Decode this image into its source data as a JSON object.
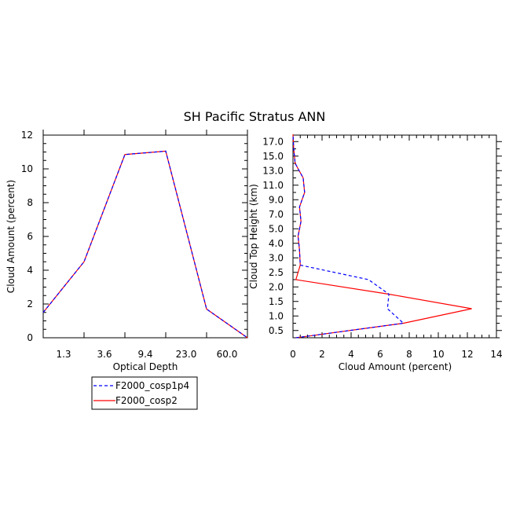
{
  "figure": {
    "title": "SH Pacific Stratus ANN"
  },
  "legend": {
    "entries": [
      {
        "label": "F2000_cosp1p4",
        "color": "#0000ff",
        "dash": "dashed"
      },
      {
        "label": "F2000_cosp2",
        "color": "#ff0000",
        "dash": "solid"
      }
    ]
  },
  "chart_data": [
    {
      "type": "line",
      "title": "",
      "xlabel": "Optical Depth",
      "ylabel": "Cloud Amount (percent)",
      "x_tick_labels": [
        "1.3",
        "3.6",
        "9.4",
        "23.0",
        "60.0"
      ],
      "y_ticks": [
        0,
        2,
        4,
        6,
        8,
        10,
        12
      ],
      "ylim": [
        0,
        12
      ],
      "grid": false,
      "series": [
        {
          "name": "F2000_cosp1p4",
          "color": "#0000ff",
          "dash": "dashed",
          "x": [
            0,
            1,
            2,
            3,
            4,
            5
          ],
          "y": [
            1.5,
            4.5,
            10.85,
            11.05,
            1.7,
            0.0
          ]
        },
        {
          "name": "F2000_cosp2",
          "color": "#ff0000",
          "dash": "solid",
          "x": [
            0,
            1,
            2,
            3,
            4,
            5
          ],
          "y": [
            1.5,
            4.5,
            10.85,
            11.05,
            1.7,
            0.0
          ]
        }
      ]
    },
    {
      "type": "line",
      "title": "",
      "xlabel": "Cloud Amount (percent)",
      "ylabel": "Cloud Top Height (km)",
      "x_ticks": [
        0,
        2,
        4,
        6,
        8,
        10,
        12,
        14
      ],
      "xlim": [
        0,
        14
      ],
      "y_tick_labels": [
        "0.5",
        "1.0",
        "1.5",
        "2.0",
        "2.5",
        "3.0",
        "4.0",
        "5.0",
        "7.0",
        "9.0",
        "11.0",
        "13.0",
        "15.0",
        "17.0"
      ],
      "grid": false,
      "series": [
        {
          "name": "F2000_cosp1p4",
          "color": "#0000ff",
          "dash": "dashed",
          "level_index": [
            0,
            1,
            2,
            3,
            4,
            5,
            6,
            7,
            8,
            9,
            10,
            11,
            12,
            13,
            14
          ],
          "x": [
            0.2,
            7.6,
            6.5,
            6.6,
            5.2,
            0.5,
            0.45,
            0.35,
            0.55,
            0.45,
            0.8,
            0.7,
            0.15,
            0.05,
            0.0
          ]
        },
        {
          "name": "F2000_cosp2",
          "color": "#ff0000",
          "dash": "solid",
          "level_index": [
            0,
            1,
            2,
            3,
            4,
            5,
            6,
            7,
            8,
            9,
            10,
            11,
            12,
            13,
            14
          ],
          "x": [
            0.2,
            7.6,
            12.3,
            6.6,
            0.2,
            0.5,
            0.45,
            0.35,
            0.55,
            0.45,
            0.8,
            0.7,
            0.15,
            0.05,
            0.0
          ]
        }
      ]
    }
  ]
}
